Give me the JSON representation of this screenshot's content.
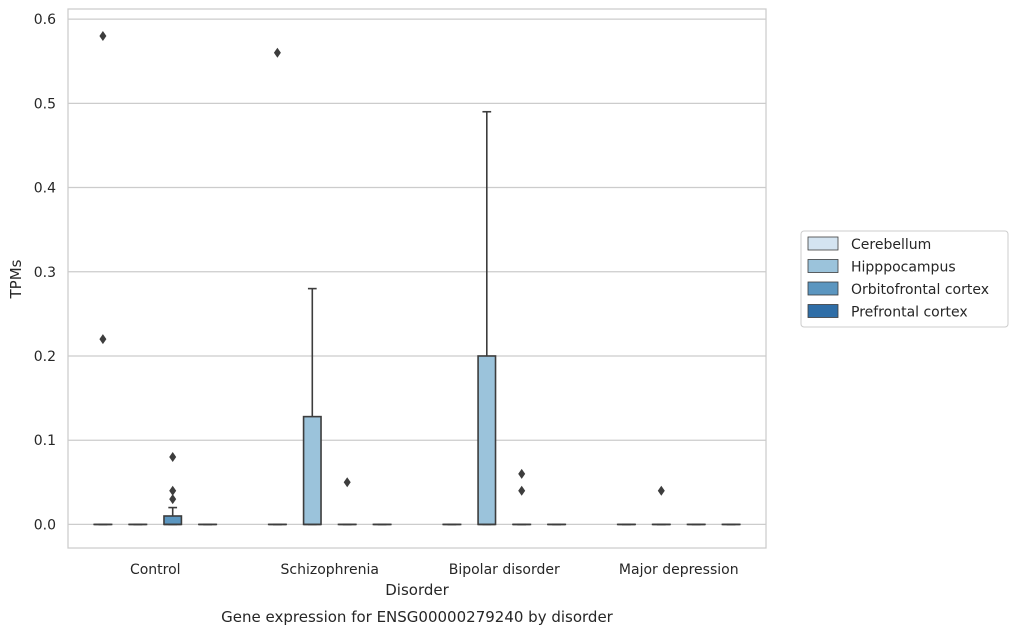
{
  "chart_data": {
    "type": "box",
    "title": "Gene expression for ENSG00000279240 by disorder",
    "xlabel": "Disorder",
    "ylabel": "TPMs",
    "ylim": [
      -0.028,
      0.612
    ],
    "yticks": [
      0.0,
      0.1,
      0.2,
      0.3,
      0.4,
      0.5,
      0.6
    ],
    "ytick_labels": [
      "0.0",
      "0.1",
      "0.2",
      "0.3",
      "0.4",
      "0.5",
      "0.6"
    ],
    "categories": [
      "Control",
      "Schizophrenia",
      "Bipolar disorder",
      "Major depression"
    ],
    "grid": "horizontal",
    "legend_position": "right",
    "series": [
      {
        "name": "Cerebellum",
        "color": "#d4e4f1",
        "boxes": [
          {
            "q1": 0,
            "median": 0,
            "q3": 0,
            "whislo": 0,
            "whishi": 0,
            "fliers": [
              0.58,
              0.22
            ]
          },
          {
            "q1": 0,
            "median": 0,
            "q3": 0,
            "whislo": 0,
            "whishi": 0,
            "fliers": [
              0.56
            ]
          },
          {
            "q1": 0,
            "median": 0,
            "q3": 0,
            "whislo": 0,
            "whishi": 0,
            "fliers": []
          },
          {
            "q1": 0,
            "median": 0,
            "q3": 0,
            "whislo": 0,
            "whishi": 0,
            "fliers": []
          }
        ]
      },
      {
        "name": "Hipppocampus",
        "color": "#9bc3db",
        "boxes": [
          {
            "q1": 0,
            "median": 0,
            "q3": 0,
            "whislo": 0,
            "whishi": 0,
            "fliers": []
          },
          {
            "q1": 0,
            "median": 0,
            "q3": 0.128,
            "whislo": 0,
            "whishi": 0.28,
            "fliers": []
          },
          {
            "q1": 0,
            "median": 0,
            "q3": 0.2,
            "whislo": 0,
            "whishi": 0.49,
            "fliers": []
          },
          {
            "q1": 0,
            "median": 0,
            "q3": 0,
            "whislo": 0,
            "whishi": 0,
            "fliers": [
              0.04
            ]
          }
        ]
      },
      {
        "name": "Orbitofrontal cortex",
        "color": "#5b96c0",
        "boxes": [
          {
            "q1": 0,
            "median": 0,
            "q3": 0.01,
            "whislo": 0,
            "whishi": 0.02,
            "fliers": [
              0.08,
              0.04,
              0.03
            ]
          },
          {
            "q1": 0,
            "median": 0,
            "q3": 0,
            "whislo": 0,
            "whishi": 0,
            "fliers": [
              0.05
            ]
          },
          {
            "q1": 0,
            "median": 0,
            "q3": 0,
            "whislo": 0,
            "whishi": 0,
            "fliers": [
              0.06,
              0.04
            ]
          },
          {
            "q1": 0,
            "median": 0,
            "q3": 0,
            "whislo": 0,
            "whishi": 0,
            "fliers": []
          }
        ]
      },
      {
        "name": "Prefrontal cortex",
        "color": "#2f6ea7",
        "boxes": [
          {
            "q1": 0,
            "median": 0,
            "q3": 0,
            "whislo": 0,
            "whishi": 0,
            "fliers": []
          },
          {
            "q1": 0,
            "median": 0,
            "q3": 0,
            "whislo": 0,
            "whishi": 0,
            "fliers": []
          },
          {
            "q1": 0,
            "median": 0,
            "q3": 0,
            "whislo": 0,
            "whishi": 0,
            "fliers": []
          },
          {
            "q1": 0,
            "median": 0,
            "q3": 0,
            "whislo": 0,
            "whishi": 0,
            "fliers": []
          }
        ]
      }
    ]
  }
}
